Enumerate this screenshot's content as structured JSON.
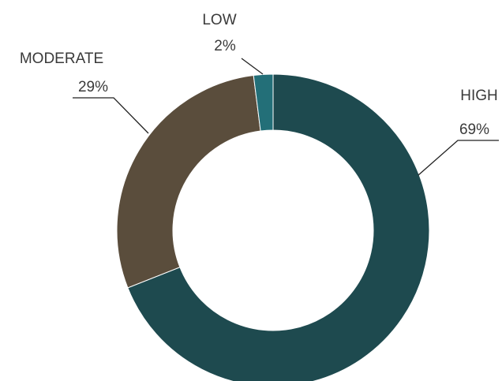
{
  "chart_data": {
    "type": "pie",
    "variant": "donut",
    "title": "",
    "slices": [
      {
        "label": "HIGH",
        "value": 69,
        "display": "69%",
        "color": "#1e4a4f"
      },
      {
        "label": "MODERATE",
        "value": 29,
        "display": "29%",
        "color": "#5a4d3c"
      },
      {
        "label": "LOW",
        "value": 2,
        "display": "2%",
        "color": "#236f78"
      }
    ],
    "legend": "none"
  }
}
